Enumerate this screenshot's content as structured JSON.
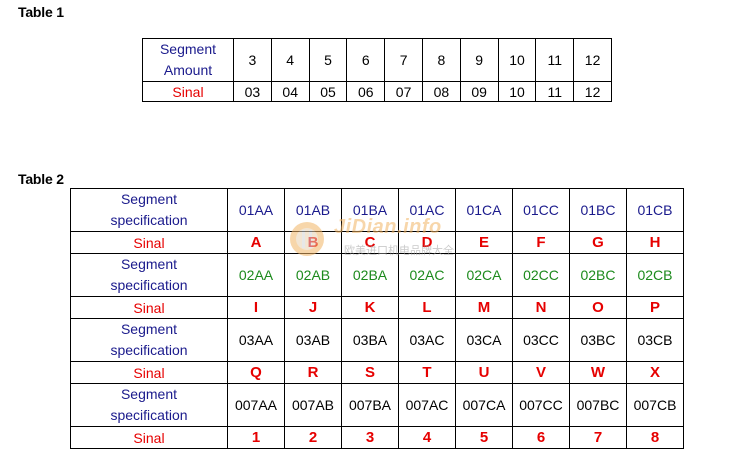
{
  "table1": {
    "caption": "Table 1",
    "row1_header": [
      "Segment",
      "Amount"
    ],
    "row1_values": [
      "3",
      "4",
      "5",
      "6",
      "7",
      "8",
      "9",
      "10",
      "11",
      "12"
    ],
    "row2_header": "Sinal",
    "row2_values": [
      "03",
      "04",
      "05",
      "06",
      "07",
      "08",
      "09",
      "10",
      "11",
      "12"
    ]
  },
  "table2": {
    "caption": "Table 2",
    "spec_header": [
      "Segment",
      "specification"
    ],
    "sinal_header": "Sinal",
    "groups": [
      {
        "specs": [
          "01AA",
          "01AB",
          "01BA",
          "01AC",
          "01CA",
          "01CC",
          "01BC",
          "01CB"
        ],
        "sinals": [
          "A",
          "B",
          "C",
          "D",
          "E",
          "F",
          "G",
          "H"
        ]
      },
      {
        "specs": [
          "02AA",
          "02AB",
          "02BA",
          "02AC",
          "02CA",
          "02CC",
          "02BC",
          "02CB"
        ],
        "sinals": [
          "I",
          "J",
          "K",
          "L",
          "M",
          "N",
          "O",
          "P"
        ]
      },
      {
        "specs": [
          "03AA",
          "03AB",
          "03BA",
          "03AC",
          "03CA",
          "03CC",
          "03BC",
          "03CB"
        ],
        "sinals": [
          "Q",
          "R",
          "S",
          "T",
          "U",
          "V",
          "W",
          "X"
        ]
      },
      {
        "specs": [
          "007AA",
          "007AB",
          "007BA",
          "007AC",
          "007CA",
          "007CC",
          "007BC",
          "007CB"
        ],
        "sinals": [
          "1",
          "2",
          "3",
          "4",
          "5",
          "6",
          "7",
          "8"
        ]
      }
    ]
  },
  "watermark": {
    "title": "JiDian.info",
    "subtitle": "欧美进口机电品牌大全"
  },
  "colors": {
    "blue": "#1a1a8c",
    "green": "#1c8a1c",
    "red": "#e60000",
    "black": "#000000"
  }
}
